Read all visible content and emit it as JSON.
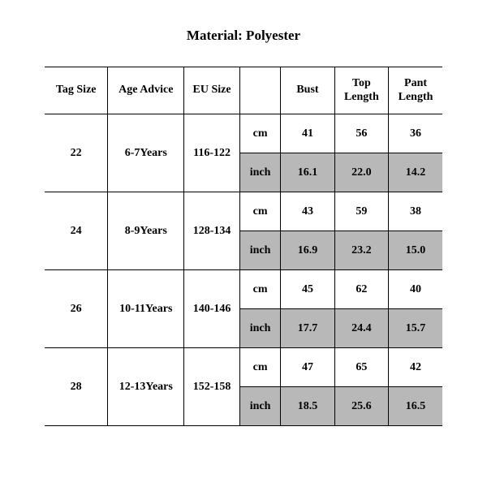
{
  "title": "Material: Polyester",
  "table": {
    "headers": [
      "Tag Size",
      "Age Advice",
      "EU Size",
      "",
      "Bust",
      "Top Length",
      "Pant Length"
    ],
    "unit_cm": "cm",
    "unit_in": "inch",
    "col_widths": {
      "tag": 68,
      "age": 82,
      "eu": 60,
      "unit": 44,
      "val": 58
    },
    "colors": {
      "border": "#000000",
      "background": "#ffffff",
      "shade": "#b8b8b8",
      "text": "#000000"
    },
    "font": {
      "family": "Times New Roman",
      "header_size": 14,
      "title_size": 17,
      "weight": "bold"
    },
    "rows": [
      {
        "tag": "22",
        "age": "6-7Years",
        "eu": "116-122",
        "cm": [
          "41",
          "56",
          "36"
        ],
        "inch": [
          "16.1",
          "22.0",
          "14.2"
        ]
      },
      {
        "tag": "24",
        "age": "8-9Years",
        "eu": "128-134",
        "cm": [
          "43",
          "59",
          "38"
        ],
        "inch": [
          "16.9",
          "23.2",
          "15.0"
        ]
      },
      {
        "tag": "26",
        "age": "10-11Years",
        "eu": "140-146",
        "cm": [
          "45",
          "62",
          "40"
        ],
        "inch": [
          "17.7",
          "24.4",
          "15.7"
        ]
      },
      {
        "tag": "28",
        "age": "12-13Years",
        "eu": "152-158",
        "cm": [
          "47",
          "65",
          "42"
        ],
        "inch": [
          "18.5",
          "25.6",
          "16.5"
        ]
      }
    ]
  }
}
